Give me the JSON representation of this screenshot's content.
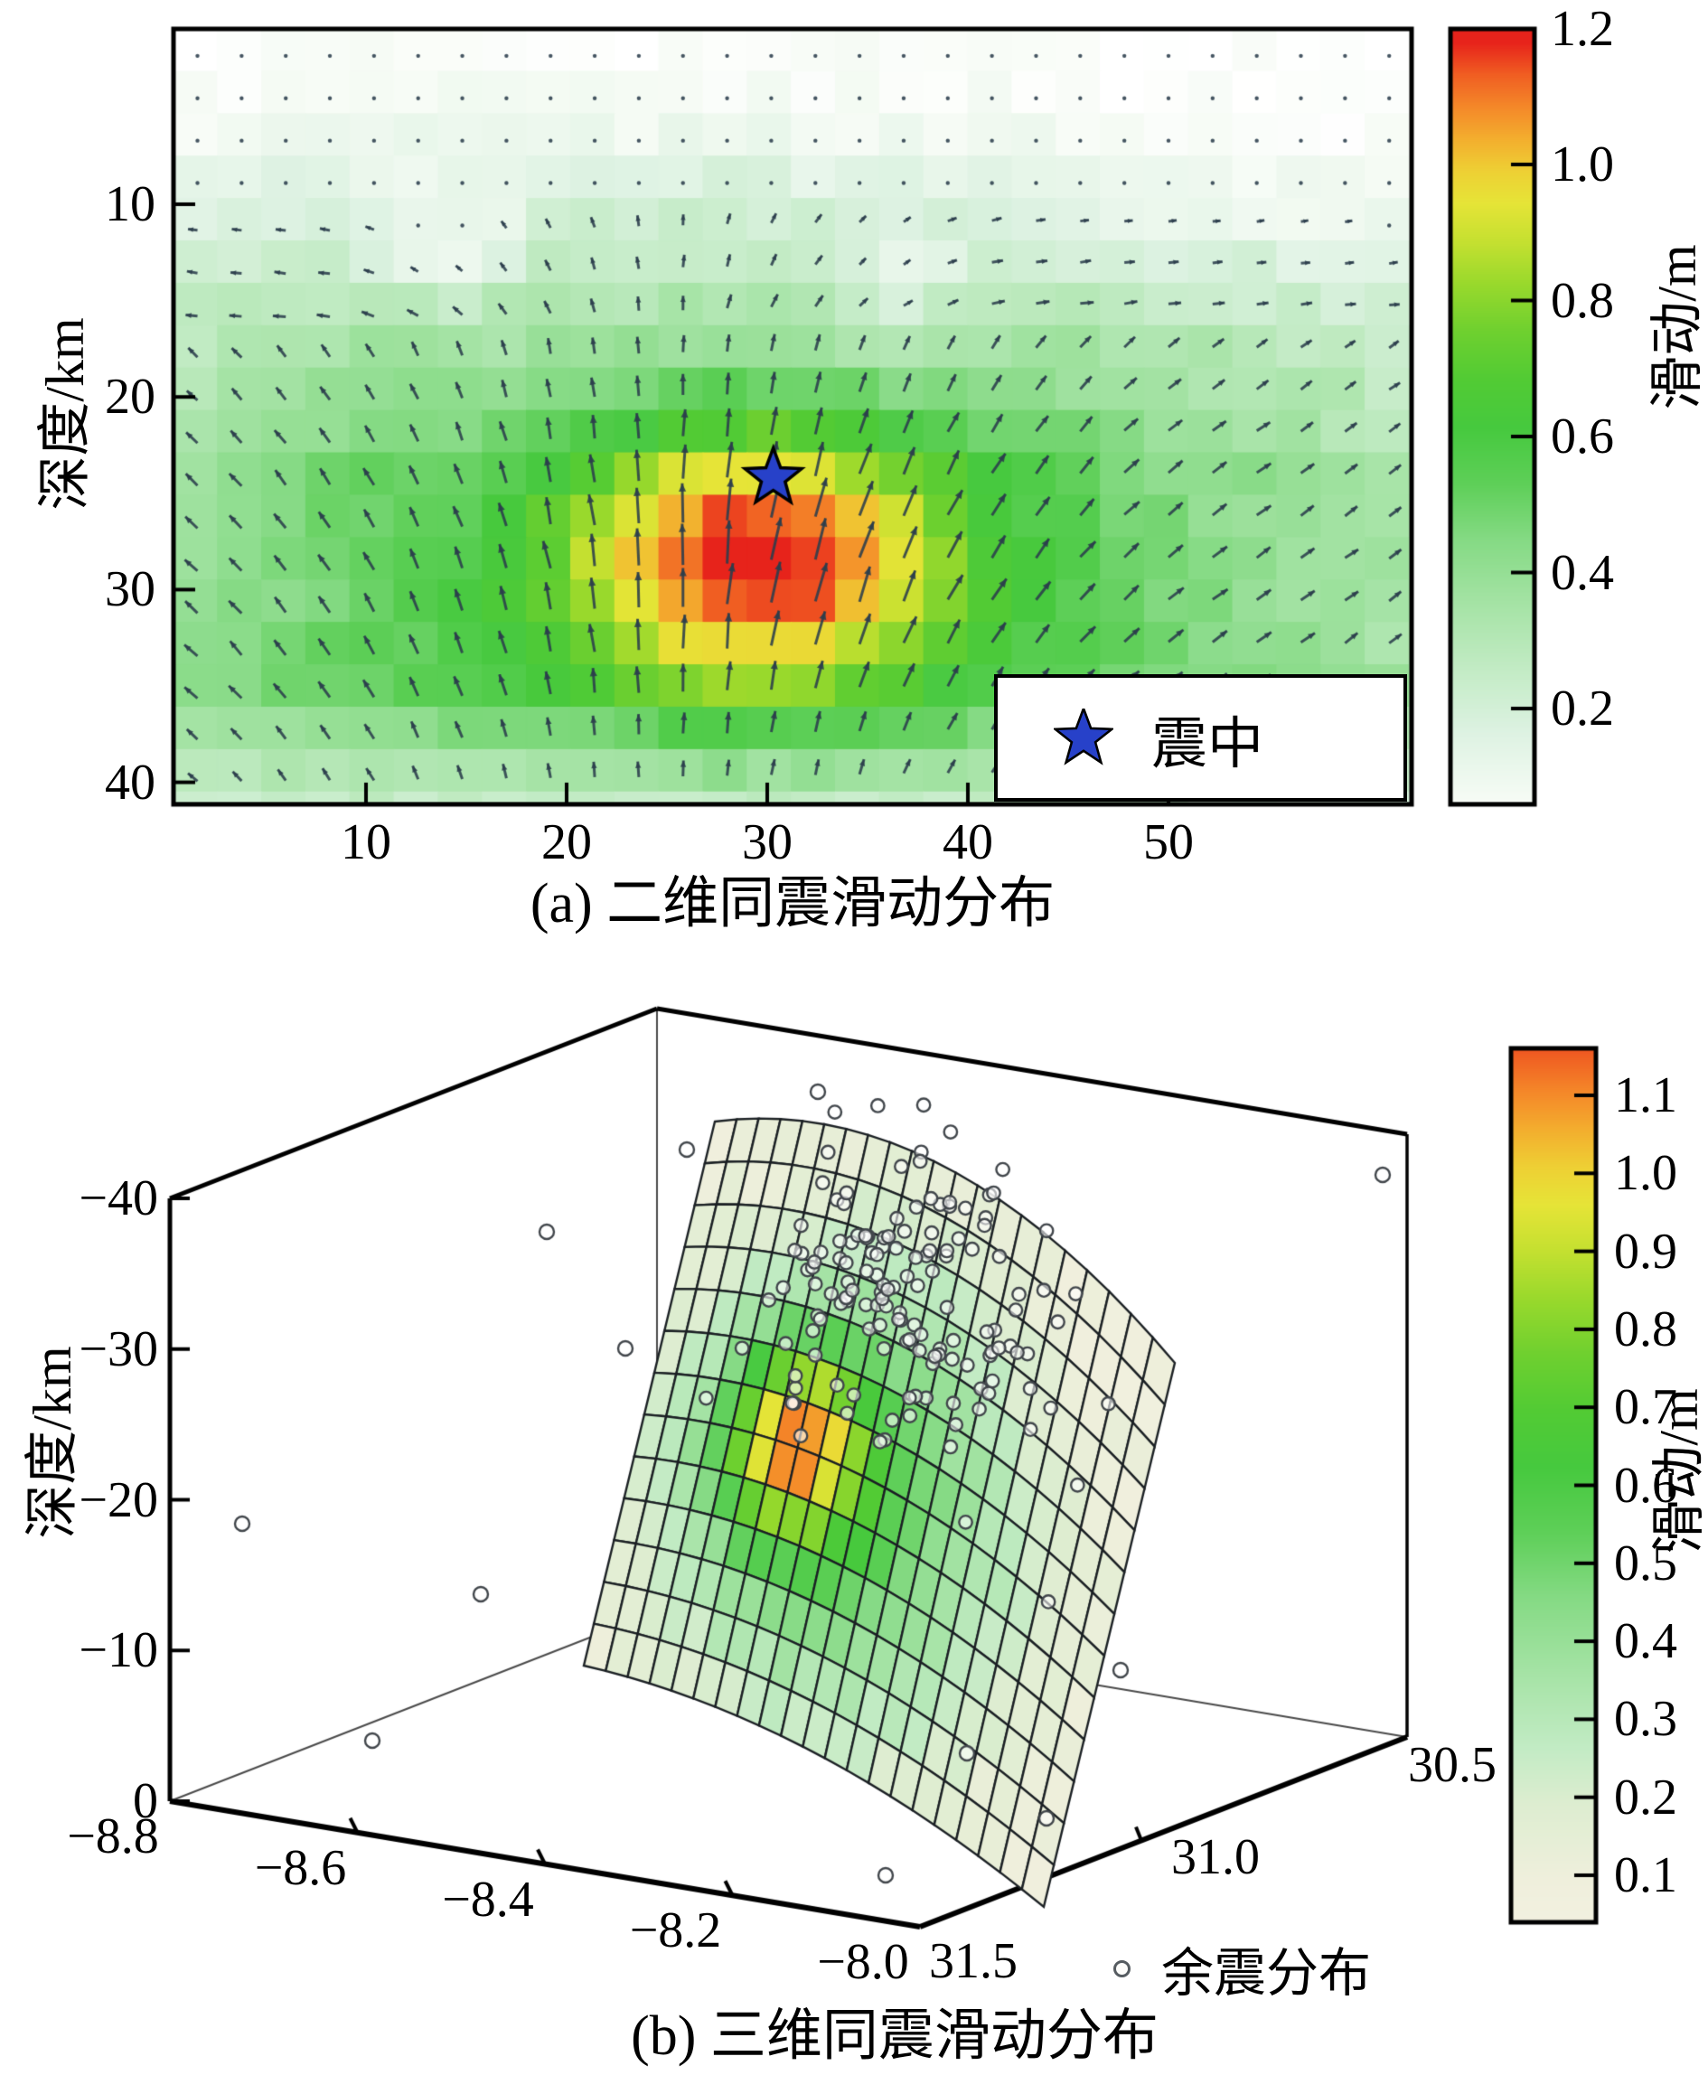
{
  "chart_data": [
    {
      "type": "heatmap",
      "panel": "a",
      "caption": "(a) 二维同震滑动分布",
      "ylabel": "深度/km",
      "colorbar_label": "滑动/m",
      "legend_label": "震中",
      "x_ticks": [
        10,
        20,
        30,
        40,
        50
      ],
      "y_ticks": [
        10,
        20,
        30,
        40
      ],
      "x_range_km": [
        0,
        62
      ],
      "depth_range_km": [
        0.9,
        41.2
      ],
      "colorbar_ticks": [
        1.2,
        1.0,
        0.8,
        0.6,
        0.4,
        0.2
      ],
      "slip_range_m": [
        0,
        1.2
      ],
      "epicenter_marker": {
        "x_km": 30.3,
        "depth_km": 24.2,
        "symbol": "star",
        "color": "#2741c9"
      },
      "slip_patch_model": {
        "center_x_km": 29.5,
        "center_depth_km": 28.5,
        "sigma_x_km": 7.0,
        "sigma_depth_km": 4.8,
        "peak_slip_m": 1.22,
        "background_max_m": 0.52
      },
      "quiver": {
        "meaning": "slip vectors on fault cells",
        "grid_step_km": 2.2
      }
    },
    {
      "type": "surface_3d",
      "panel": "b",
      "caption": "(b) 三维同震滑动分布",
      "zlabel": "深度/km",
      "colorbar_label": "滑动/m",
      "legend_label": "余震分布",
      "z_ticks": [
        0,
        -10,
        -20,
        -30,
        -40
      ],
      "lon_ticks": [
        -8.8,
        -8.6,
        -8.4,
        -8.2,
        -8.0
      ],
      "lat_ticks": [
        31.5,
        31.0,
        30.5
      ],
      "lon_range": [
        -8.8,
        -8.0
      ],
      "lat_range": [
        30.4,
        31.5
      ],
      "depth_range_km": [
        -40,
        0
      ],
      "colorbar_ticks": [
        1.1,
        1.0,
        0.9,
        0.8,
        0.7,
        0.6,
        0.5,
        0.4,
        0.3,
        0.2,
        0.1
      ],
      "fault_mesh": {
        "cols": 21,
        "rows": 13,
        "slip_model": {
          "patch_center_uv": [
            0.32,
            0.53
          ],
          "patch_sigma_uv": [
            0.1,
            0.11
          ],
          "patch_peak_add": 0.62,
          "broad_center_uv": [
            0.44,
            0.57
          ],
          "broad_sigma_uv": [
            0.26,
            0.28
          ],
          "broad_add": 0.5,
          "base": 0.07,
          "peak_slip_m": 1.18
        }
      },
      "aftershocks": {
        "cluster_count": 150,
        "cluster_center_uv": [
          0.46,
          0.22
        ],
        "cluster_sigma_uv": [
          0.16,
          0.13
        ],
        "outlier_count": 12
      }
    }
  ],
  "colormap_stops": [
    [
      0.0,
      "#ffffff"
    ],
    [
      0.06,
      "#f5fbf4"
    ],
    [
      0.14,
      "#ddf2e2"
    ],
    [
      0.22,
      "#c2ebc4"
    ],
    [
      0.3,
      "#a5e3a5"
    ],
    [
      0.38,
      "#85da84"
    ],
    [
      0.45,
      "#5ecf58"
    ],
    [
      0.52,
      "#46c93e"
    ],
    [
      0.58,
      "#52cb34"
    ],
    [
      0.64,
      "#6fd02f"
    ],
    [
      0.7,
      "#9ad92c"
    ],
    [
      0.75,
      "#c4e030"
    ],
    [
      0.8,
      "#e6e437"
    ],
    [
      0.84,
      "#eed034"
    ],
    [
      0.88,
      "#f3ae2e"
    ],
    [
      0.92,
      "#f48829"
    ],
    [
      0.96,
      "#f05e22"
    ],
    [
      1.0,
      "#e7231b"
    ]
  ],
  "colormap_cream_low_stops": [
    [
      0.0,
      "#f4f1e2"
    ],
    [
      0.08,
      "#efefdc"
    ],
    [
      0.16,
      "#ddedd0"
    ]
  ],
  "marker_colors": {
    "epicenter_star": "#2741c9",
    "aftershock_circle_edge": "#565c61"
  }
}
